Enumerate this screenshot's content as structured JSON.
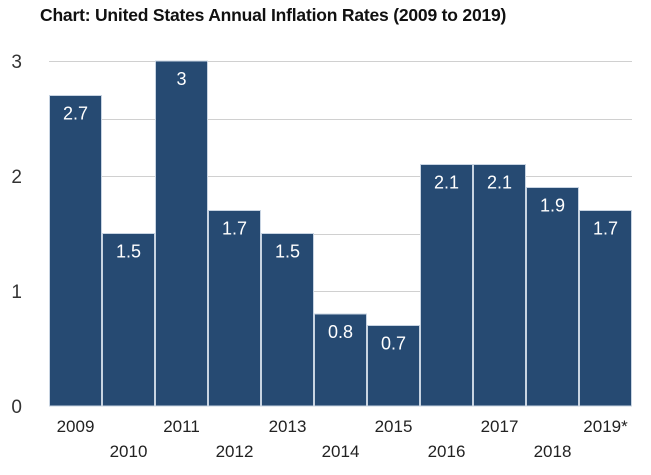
{
  "chart_data": {
    "type": "bar",
    "title": "Chart: United States Annual Inflation Rates (2009 to 2019)",
    "xlabel": "",
    "ylabel": "",
    "categories": [
      "2009",
      "2010",
      "2011",
      "2012",
      "2013",
      "2014",
      "2015",
      "2016",
      "2017",
      "2018",
      "2019*"
    ],
    "values": [
      2.7,
      1.5,
      3,
      1.7,
      1.5,
      0.8,
      0.7,
      2.1,
      2.1,
      1.9,
      1.7
    ],
    "data_labels": [
      "2.7",
      "1.5",
      "3",
      "1.7",
      "1.5",
      "0.8",
      "0.7",
      "2.1",
      "2.1",
      "1.9",
      "1.7"
    ],
    "ylim": [
      0,
      3
    ],
    "yticks": [
      0,
      1,
      2,
      3
    ],
    "ytick_labels": [
      "0",
      "1",
      "2",
      "3"
    ],
    "gridlines": [
      0.5,
      1,
      1.5,
      2,
      2.5,
      3
    ],
    "grid": true,
    "legend": "none",
    "bar_color": "#264a72",
    "bar_border_color": "#c8d4e2",
    "grid_color": "#d0d0d0"
  }
}
